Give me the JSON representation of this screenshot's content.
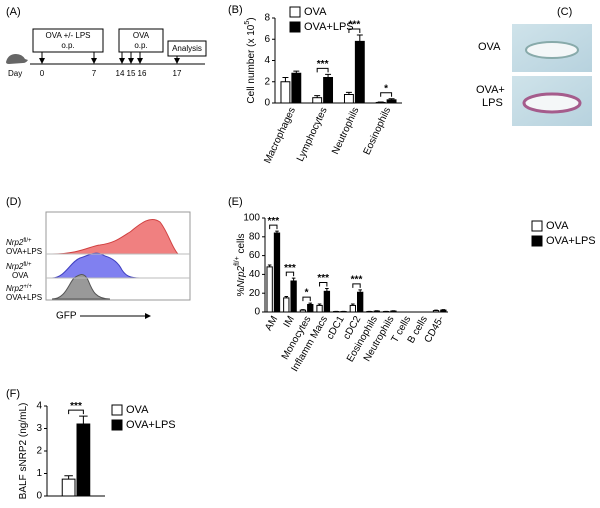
{
  "timeline": {
    "panel_label": "(A)",
    "box1": [
      "OVA +/- LPS",
      "o.p."
    ],
    "box2": [
      "OVA",
      "o.p."
    ],
    "box3": "Analysis",
    "day": "Day",
    "days": [
      "0",
      "7",
      "14",
      "15",
      "16",
      "17"
    ]
  },
  "histology": {
    "panel_label": "(C)",
    "labels": [
      [
        "OVA"
      ],
      [
        "OVA+",
        "LPS"
      ]
    ]
  },
  "flow": {
    "panel_label": "(D)",
    "traces": [
      {
        "gene": "Nrp2",
        "genotype": "fl/+",
        "condition": "OVA+LPS"
      },
      {
        "gene": "Nrp2",
        "genotype": "fl/+",
        "condition": "OVA"
      },
      {
        "gene": "Nrp2",
        "genotype": "+/+",
        "condition": "OVA+LPS"
      }
    ],
    "xlabel": "GFP"
  },
  "chart_data": [
    {
      "type": "bar",
      "panel_label": "(B)",
      "ylabel_parts": [
        {
          "text": "Cell number (x 10"
        },
        {
          "text": "5",
          "style": "superscript"
        },
        {
          "text": ")"
        }
      ],
      "categories": [
        "Macrophages",
        "Lymphocytes",
        "Neutrophils",
        "Eosinophils"
      ],
      "series": [
        {
          "name": "OVA",
          "color": "#ffffff",
          "values": [
            2.0,
            0.5,
            0.8,
            0.05
          ],
          "errors": [
            0.4,
            0.2,
            0.2,
            0.05
          ]
        },
        {
          "name": "OVA+LPS",
          "color": "#000000",
          "values": [
            2.8,
            2.4,
            5.8,
            0.3
          ],
          "errors": [
            0.2,
            0.3,
            0.6,
            0.1
          ]
        }
      ],
      "significance": [
        null,
        "***",
        "***",
        "*"
      ],
      "ylim": [
        0,
        8
      ],
      "yticks": [
        0,
        2,
        4,
        6,
        8
      ]
    },
    {
      "type": "bar",
      "panel_label": "(E)",
      "ylabel_parts": [
        {
          "text": "%"
        },
        {
          "text": "Nrp2",
          "style": "italic"
        },
        {
          "text": "fl/+",
          "style": "superscript"
        },
        {
          "text": " cells"
        }
      ],
      "categories": [
        "AM",
        "IM",
        "Monocytes",
        "Inflamm Macs",
        "cDC1",
        "cDC2",
        "Eosinophils",
        "Neutrophils",
        "T cells",
        "B cells",
        "CD45-"
      ],
      "series": [
        {
          "name": "OVA",
          "color": "#ffffff",
          "values": [
            48,
            15,
            2,
            7,
            0.5,
            7,
            0.5,
            0.5,
            0,
            0,
            1.5
          ],
          "errors": [
            2,
            1.5,
            0.5,
            1.5,
            0.2,
            1.5,
            0.2,
            0.2,
            0,
            0,
            0.5
          ]
        },
        {
          "name": "OVA+LPS",
          "color": "#000000",
          "values": [
            84,
            33,
            8,
            22,
            0.5,
            21,
            1,
            1,
            0,
            0,
            2
          ],
          "errors": [
            2,
            3,
            1.5,
            3,
            0.2,
            2.5,
            0.3,
            0.3,
            0,
            0,
            0.5
          ]
        }
      ],
      "significance": [
        "***",
        "***",
        "*",
        "***",
        null,
        "***",
        null,
        null,
        null,
        null,
        null
      ],
      "ylim": [
        0,
        100
      ],
      "yticks": [
        0,
        20,
        40,
        60,
        80,
        100
      ]
    },
    {
      "type": "bar",
      "panel_label": "(F)",
      "ylabel_parts": [
        {
          "text": "BALF sNRP2 (ng/mL)"
        }
      ],
      "categories": [
        null
      ],
      "series": [
        {
          "name": "OVA",
          "color": "#ffffff",
          "values": [
            0.75
          ],
          "errors": [
            0.15
          ]
        },
        {
          "name": "OVA+LPS",
          "color": "#000000",
          "values": [
            3.2
          ],
          "errors": [
            0.35
          ]
        }
      ],
      "significance": [
        "***"
      ],
      "ylim": [
        0,
        4
      ],
      "yticks": [
        0,
        1,
        2,
        3,
        4
      ]
    }
  ]
}
